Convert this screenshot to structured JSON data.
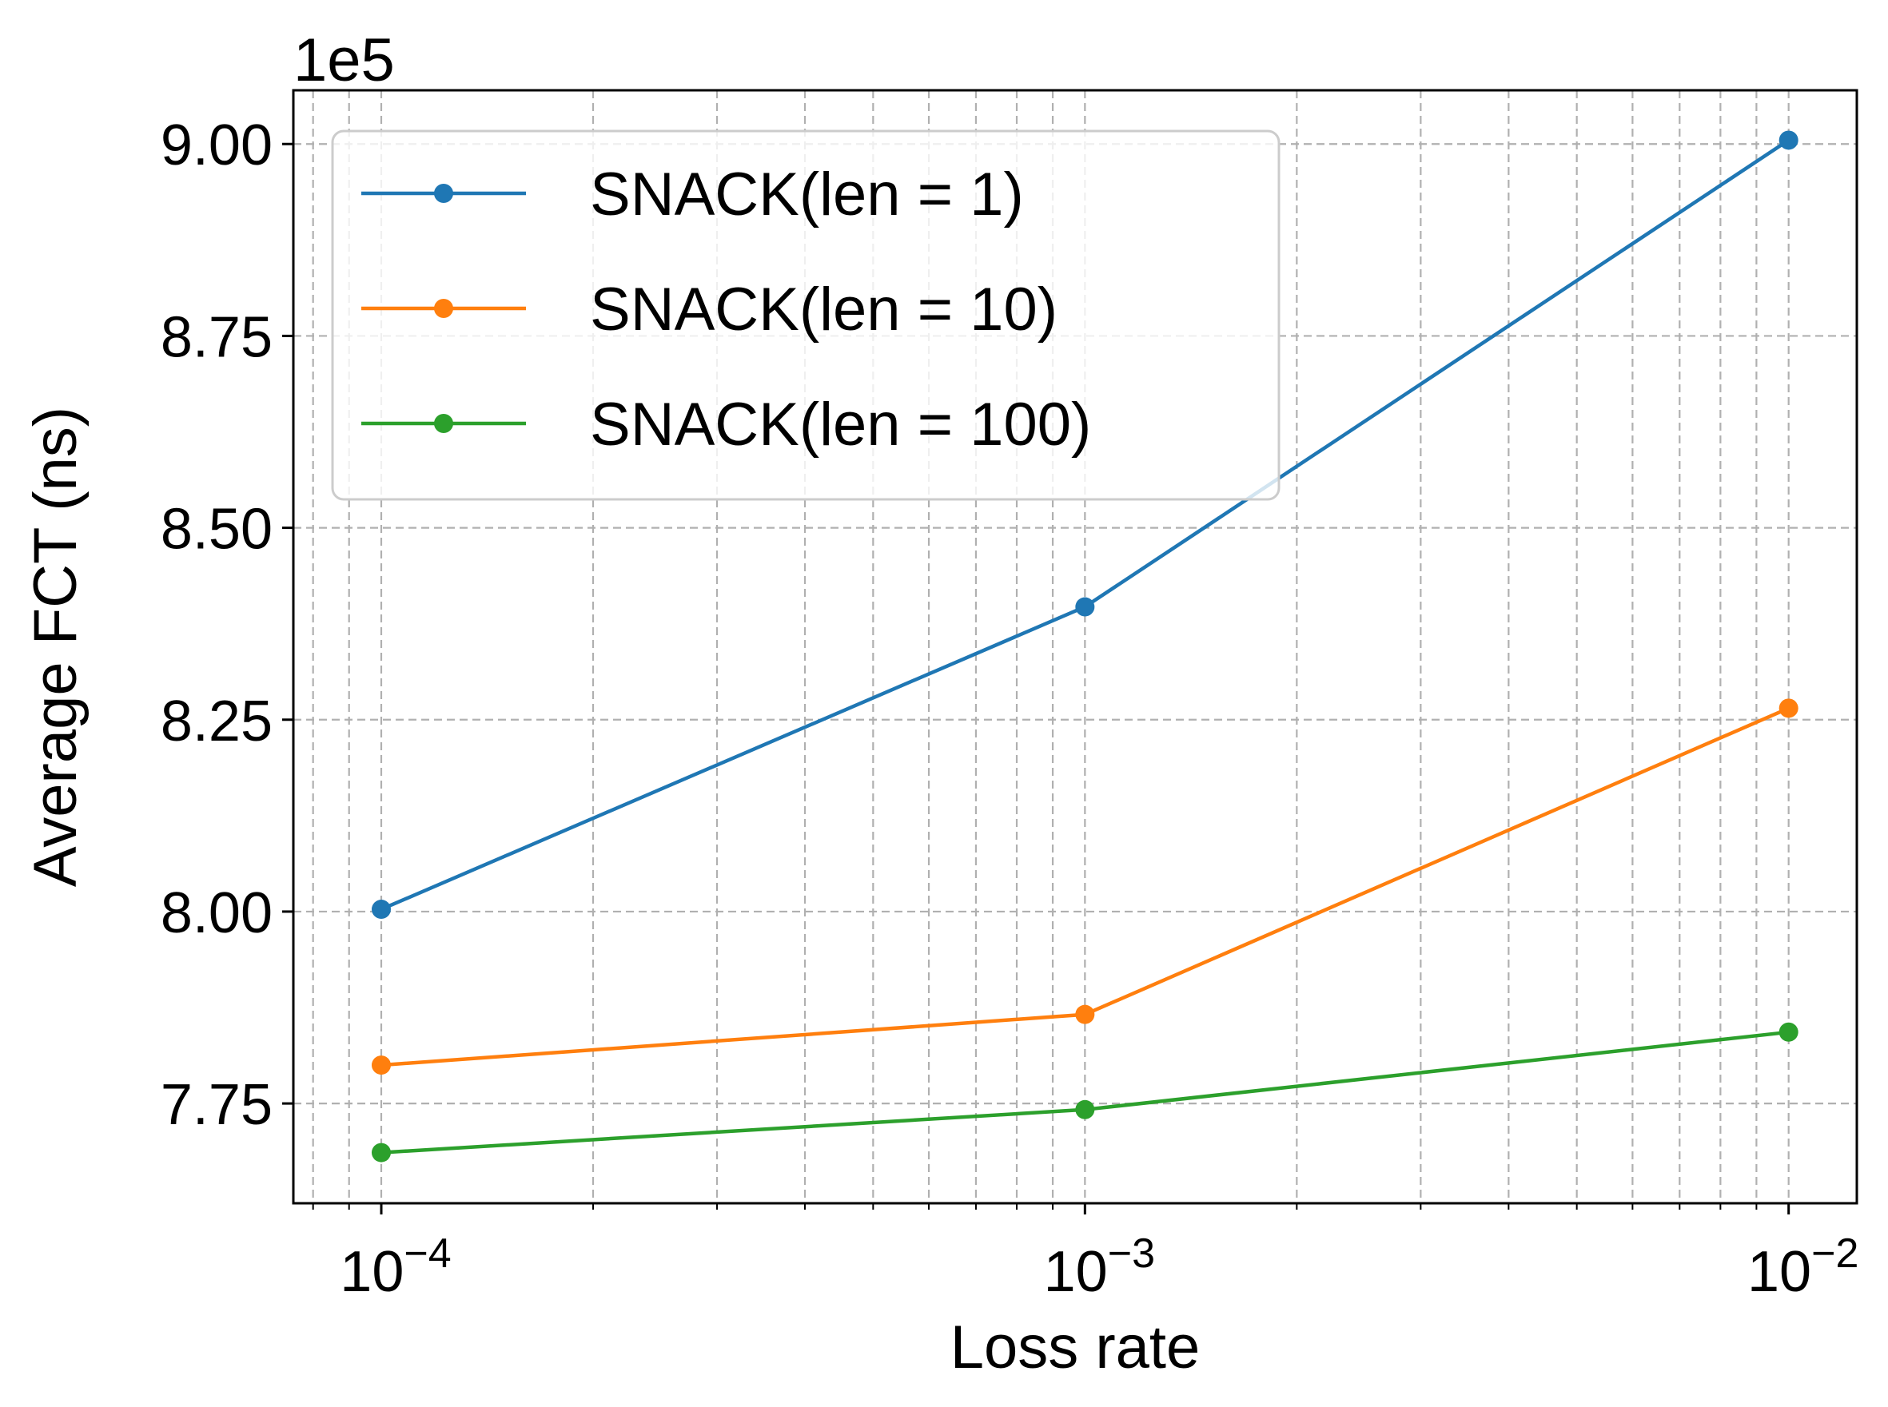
{
  "chart_data": {
    "type": "line",
    "xlabel": "Loss rate",
    "ylabel": "Average FCT (ns)",
    "y_offset_label": "1e5",
    "x_scale": "log",
    "xlim": [
      7.5e-05,
      0.0125
    ],
    "ylim": [
      762000,
      907000
    ],
    "x": [
      0.0001,
      0.001,
      0.01
    ],
    "x_tick_labels": [
      {
        "base": "10",
        "exp": "−4"
      },
      {
        "base": "10",
        "exp": "−3"
      },
      {
        "base": "10",
        "exp": "−2"
      }
    ],
    "y_ticks": [
      775000,
      800000,
      825000,
      850000,
      875000,
      900000
    ],
    "y_tick_labels": [
      "7.75",
      "8.00",
      "8.25",
      "8.50",
      "8.75",
      "9.00"
    ],
    "grid": true,
    "legend_position": "upper-left",
    "series": [
      {
        "name": "SNACK(len = 1)",
        "color": "#1f77b4",
        "values": [
          800300,
          839700,
          900500
        ]
      },
      {
        "name": "SNACK(len = 10)",
        "color": "#ff7f0e",
        "values": [
          780000,
          786600,
          826500
        ]
      },
      {
        "name": "SNACK(len = 100)",
        "color": "#2ca02c",
        "values": [
          768600,
          774200,
          784300
        ]
      }
    ]
  }
}
